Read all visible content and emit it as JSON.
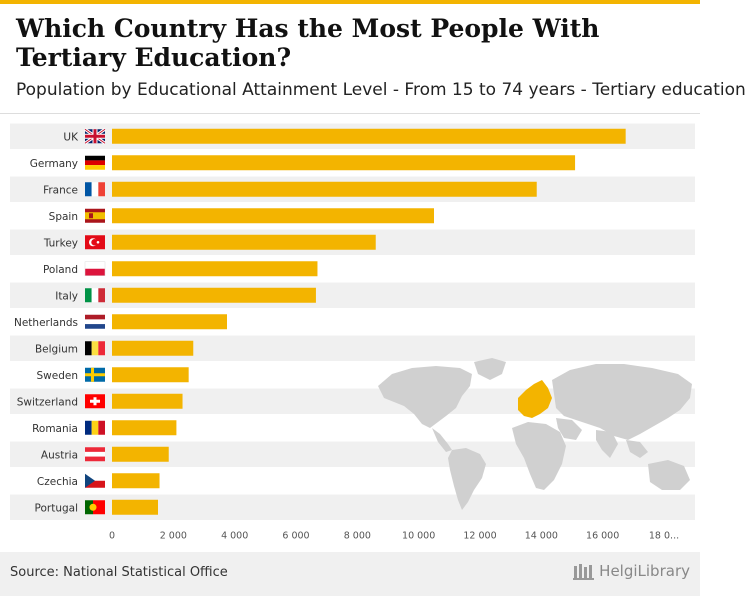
{
  "header": {
    "title": "Which Country Has the Most People With Tertiary Education?",
    "subtitle": "Population by Educational Attainment Level - From 15 to 74 years - Tertiary education"
  },
  "footer": {
    "source": "Source: National Statistical Office",
    "logo_text": "HelgiLibrary"
  },
  "colors": {
    "bar": "#f3b400",
    "band": "#f0f0f0",
    "map": "#d0d0d0",
    "map_highlight": "#f3b400"
  },
  "chart_data": {
    "type": "bar",
    "orientation": "horizontal",
    "title": "Which Country Has the Most People With Tertiary Education?",
    "subtitle": "Population by Educational Attainment Level - From 15 to 74 years - Tertiary education",
    "categories": [
      "UK",
      "Germany",
      "France",
      "Spain",
      "Turkey",
      "Poland",
      "Italy",
      "Netherlands",
      "Belgium",
      "Sweden",
      "Switzerland",
      "Romania",
      "Austria",
      "Czechia",
      "Portugal"
    ],
    "values": [
      16750,
      15100,
      13850,
      10500,
      8600,
      6700,
      6650,
      3750,
      2650,
      2500,
      2300,
      2100,
      1850,
      1550,
      1500
    ],
    "xlim": [
      0,
      18000
    ],
    "xticks": [
      0,
      2000,
      4000,
      6000,
      8000,
      10000,
      12000,
      14000,
      16000,
      18000
    ],
    "xtick_labels": [
      "0",
      "2 000",
      "4 000",
      "6 000",
      "8 000",
      "10 000",
      "12 000",
      "14 000",
      "16 000",
      "18 0..."
    ],
    "xlabel": "",
    "ylabel": "",
    "grid": false,
    "legend": "none"
  }
}
